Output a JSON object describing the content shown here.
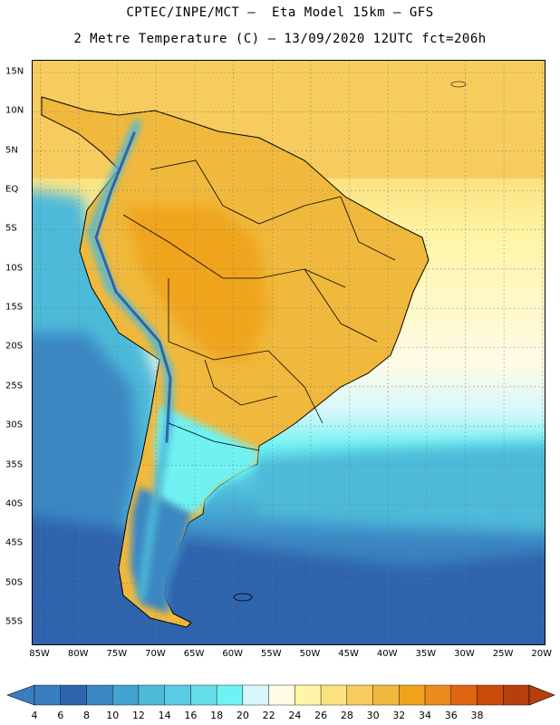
{
  "header": {
    "title_line1": "CPTEC/INPE/MCT –  Eta Model 15km – GFS",
    "title_line2": "2 Metre Temperature (C) – 13/09/2020 12UTC fct=206h"
  },
  "map": {
    "lat_labels": [
      "15N",
      "10N",
      "5N",
      "EQ",
      "5S",
      "10S",
      "15S",
      "20S",
      "25S",
      "30S",
      "35S",
      "40S",
      "45S",
      "50S",
      "55S"
    ],
    "lat_values": [
      15,
      10,
      5,
      0,
      -5,
      -10,
      -15,
      -20,
      -25,
      -30,
      -35,
      -40,
      -45,
      -50,
      -55
    ],
    "lon_labels": [
      "85W",
      "80W",
      "75W",
      "70W",
      "65W",
      "60W",
      "55W",
      "50W",
      "45W",
      "40W",
      "35W",
      "30W",
      "25W",
      "20W"
    ],
    "lon_values": [
      -85,
      -80,
      -75,
      -70,
      -65,
      -60,
      -55,
      -50,
      -45,
      -40,
      -35,
      -30,
      -25,
      -20
    ],
    "lat_range": [
      -58,
      16.5
    ],
    "lon_range": [
      -86,
      -19.5
    ],
    "grid": true
  },
  "colorbar": {
    "labels": [
      "4",
      "6",
      "8",
      "10",
      "12",
      "14",
      "16",
      "18",
      "20",
      "22",
      "24",
      "26",
      "28",
      "30",
      "32",
      "34",
      "36",
      "38"
    ],
    "colors": [
      "#3a7ec2",
      "#2e64ad",
      "#3b87c4",
      "#44a3cf",
      "#4ebad9",
      "#5bcbe3",
      "#62dde9",
      "#6ff2f3",
      "#d5f7fb",
      "#fffbe7",
      "#fff5a6",
      "#fbe27f",
      "#f7cc5f",
      "#f0b93d",
      "#efa41c",
      "#ec8a1c",
      "#e06513",
      "#c94a09",
      "#b83f0b"
    ]
  }
}
